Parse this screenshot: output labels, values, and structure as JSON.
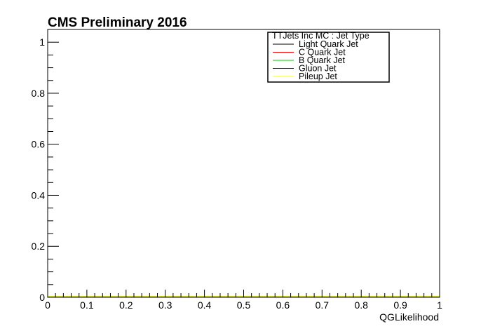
{
  "chart_data": {
    "type": "line",
    "title": "CMS Preliminary 2016",
    "xlabel": "QGLikelihood",
    "ylabel": "",
    "xlim": [
      0,
      1
    ],
    "ylim": [
      0,
      1.05
    ],
    "x_ticks": [
      "0",
      "0.1",
      "0.2",
      "0.3",
      "0.4",
      "0.5",
      "0.6",
      "0.7",
      "0.8",
      "0.9",
      "1"
    ],
    "y_ticks": [
      "0",
      "0.2",
      "0.4",
      "0.6",
      "0.8",
      "1"
    ],
    "grid": false,
    "legend": {
      "title": "TTJets Inc MC : Jet Type",
      "placement": "top-right"
    },
    "series": [
      {
        "name": "Light Quark Jet",
        "color": "#000000",
        "x": [
          0,
          1
        ],
        "y": [
          0,
          0
        ]
      },
      {
        "name": "C Quark Jet",
        "color": "#ff0000",
        "x": [
          0,
          1
        ],
        "y": [
          0,
          0
        ]
      },
      {
        "name": "B Quark Jet",
        "color": "#00cc00",
        "x": [
          0,
          1
        ],
        "y": [
          0,
          0
        ]
      },
      {
        "name": "Gluon Jet",
        "color": "#0000ff",
        "x": [
          0,
          1
        ],
        "y": [
          0,
          0
        ]
      },
      {
        "name": "Pileup Jet",
        "color": "#ffff00",
        "x": [
          0,
          1
        ],
        "y": [
          0,
          0
        ]
      }
    ]
  }
}
